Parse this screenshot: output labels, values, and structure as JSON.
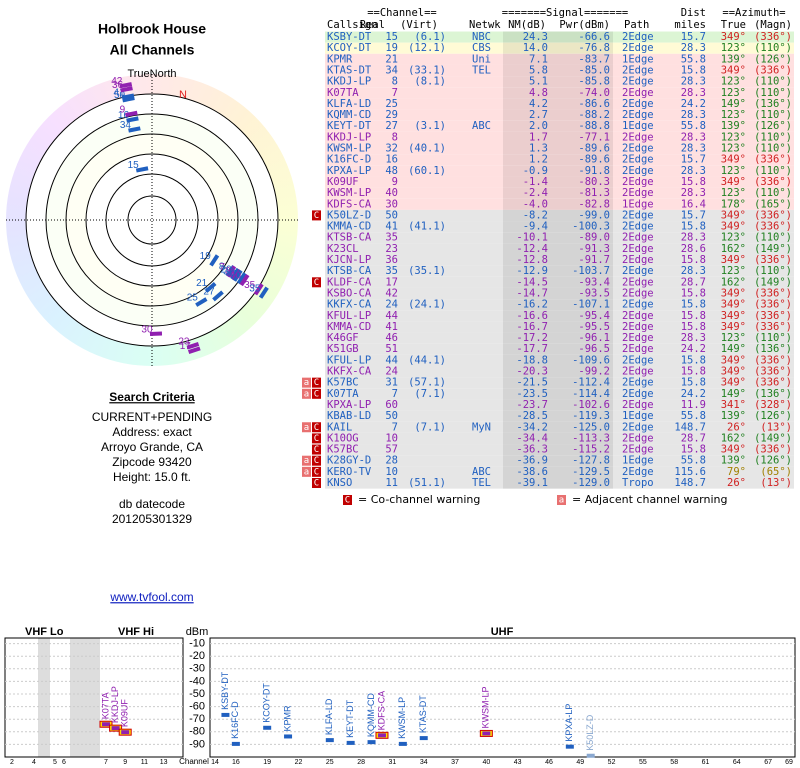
{
  "header": {
    "title": "Holbrook House",
    "subtitle": "All Channels",
    "north_label": "TrueNorth",
    "n_marker": "N"
  },
  "criteria": {
    "title": "Search Criteria",
    "lines": [
      "CURRENT+PENDING",
      "Address: exact",
      "Arroyo Grande, CA",
      "Zipcode 93420",
      "Height: 15.0 ft."
    ],
    "datecode_label": "db datecode",
    "datecode": "201205301329"
  },
  "link": "www.tvfool.com",
  "table": {
    "group_headers": [
      "==Channel==",
      "=======Signal=======",
      "Dist",
      "==Azimuth="
    ],
    "headers": [
      "Callsign",
      "Real",
      "(Virt)",
      "Netwk",
      "NM(dB)",
      "Pwr(dBm)",
      "Path",
      "miles",
      "True",
      "(Magn)"
    ],
    "rows": [
      {
        "callsign": "KSBY-DT",
        "real": "15",
        "virt": "(6.1)",
        "netwk": "NBC",
        "nm": "24.3",
        "pwr": "-66.6",
        "path": "2Edge",
        "dist": "15.7",
        "true": "349°",
        "magn": "(336°)",
        "color": "#2060c0"
      },
      {
        "callsign": "KCOY-DT",
        "real": "19",
        "virt": "(12.1)",
        "netwk": "CBS",
        "nm": "14.0",
        "pwr": "-76.8",
        "path": "2Edge",
        "dist": "28.3",
        "true": "123°",
        "magn": "(110°)",
        "color": "#2060c0"
      },
      {
        "callsign": "KPMR",
        "real": "21",
        "netwk": "Uni",
        "nm": "7.1",
        "pwr": "-83.7",
        "path": "1Edge",
        "dist": "55.8",
        "true": "139°",
        "magn": "(126°)",
        "color": "#2060c0"
      },
      {
        "callsign": "KTAS-DT",
        "real": "34",
        "virt": "(33.1)",
        "netwk": "TEL",
        "nm": "5.8",
        "pwr": "-85.0",
        "path": "2Edge",
        "dist": "15.8",
        "true": "349°",
        "magn": "(336°)",
        "color": "#2060c0"
      },
      {
        "callsign": "KKDJ-LP",
        "real": "8",
        "virt": "(8.1)",
        "nm": "5.1",
        "pwr": "-85.8",
        "path": "2Edge",
        "dist": "28.3",
        "true": "123°",
        "magn": "(110°)",
        "color": "#2060c0"
      },
      {
        "callsign": "K07TA",
        "real": "7",
        "nm": "4.8",
        "pwr": "-74.0",
        "path": "2Edge",
        "dist": "28.3",
        "true": "123°",
        "magn": "(110°)",
        "color": "#9020b0"
      },
      {
        "callsign": "KLFA-LD",
        "real": "25",
        "nm": "4.2",
        "pwr": "-86.6",
        "path": "2Edge",
        "dist": "24.2",
        "true": "149°",
        "magn": "(136°)",
        "color": "#2060c0"
      },
      {
        "callsign": "KQMM-CD",
        "real": "29",
        "nm": "2.7",
        "pwr": "-88.2",
        "path": "2Edge",
        "dist": "28.3",
        "true": "123°",
        "magn": "(110°)",
        "color": "#2060c0"
      },
      {
        "callsign": "KEYT-DT",
        "real": "27",
        "virt": "(3.1)",
        "netwk": "ABC",
        "nm": "2.0",
        "pwr": "-88.8",
        "path": "1Edge",
        "dist": "55.8",
        "true": "139°",
        "magn": "(126°)",
        "color": "#2060c0"
      },
      {
        "callsign": "KKDJ-LP",
        "real": "8",
        "nm": "1.7",
        "pwr": "-77.1",
        "path": "2Edge",
        "dist": "28.3",
        "true": "123°",
        "magn": "(110°)",
        "color": "#9020b0"
      },
      {
        "callsign": "KWSM-LP",
        "real": "32",
        "virt": "(40.1)",
        "nm": "1.3",
        "pwr": "-89.6",
        "path": "2Edge",
        "dist": "28.3",
        "true": "123°",
        "magn": "(110°)",
        "color": "#2060c0"
      },
      {
        "callsign": "K16FC-D",
        "real": "16",
        "nm": "1.2",
        "pwr": "-89.6",
        "path": "2Edge",
        "dist": "15.7",
        "true": "349°",
        "magn": "(336°)",
        "color": "#2060c0"
      },
      {
        "callsign": "KPXA-LP",
        "real": "48",
        "virt": "(60.1)",
        "nm": "-0.9",
        "pwr": "-91.8",
        "path": "2Edge",
        "dist": "28.3",
        "true": "123°",
        "magn": "(110°)",
        "color": "#2060c0"
      },
      {
        "callsign": "K09UF",
        "real": "9",
        "nm": "-1.4",
        "pwr": "-80.3",
        "path": "2Edge",
        "dist": "15.8",
        "true": "349°",
        "magn": "(336°)",
        "color": "#9020b0"
      },
      {
        "callsign": "KWSM-LP",
        "real": "40",
        "nm": "-2.4",
        "pwr": "-81.3",
        "path": "2Edge",
        "dist": "28.3",
        "true": "123°",
        "magn": "(110°)",
        "color": "#9020b0"
      },
      {
        "callsign": "KDFS-CA",
        "real": "30",
        "nm": "-4.0",
        "pwr": "-82.8",
        "path": "1Edge",
        "dist": "16.4",
        "true": "178°",
        "magn": "(165°)",
        "color": "#9020b0"
      },
      {
        "callsign": "K50LZ-D",
        "real": "50",
        "nm": "-8.2",
        "pwr": "-99.0",
        "path": "2Edge",
        "dist": "15.7",
        "true": "349°",
        "magn": "(336°)",
        "color": "#2060c0",
        "warnings": [
          "C"
        ]
      },
      {
        "callsign": "KMMA-CD",
        "real": "41",
        "virt": "(41.1)",
        "nm": "-9.4",
        "pwr": "-100.3",
        "path": "2Edge",
        "dist": "15.8",
        "true": "349°",
        "magn": "(336°)",
        "color": "#2060c0"
      },
      {
        "callsign": "KTSB-CA",
        "real": "35",
        "nm": "-10.1",
        "pwr": "-89.0",
        "path": "2Edge",
        "dist": "28.3",
        "true": "123°",
        "magn": "(110°)",
        "color": "#9020b0"
      },
      {
        "callsign": "K23CL",
        "real": "23",
        "nm": "-12.4",
        "pwr": "-91.3",
        "path": "2Edge",
        "dist": "28.6",
        "true": "162°",
        "magn": "(149°)",
        "color": "#9020b0"
      },
      {
        "callsign": "KJCN-LP",
        "real": "36",
        "nm": "-12.8",
        "pwr": "-91.7",
        "path": "2Edge",
        "dist": "15.8",
        "true": "349°",
        "magn": "(336°)",
        "color": "#9020b0"
      },
      {
        "callsign": "KTSB-CA",
        "real": "35",
        "virt": "(35.1)",
        "nm": "-12.9",
        "pwr": "-103.7",
        "path": "2Edge",
        "dist": "28.3",
        "true": "123°",
        "magn": "(110°)",
        "color": "#2060c0"
      },
      {
        "callsign": "KLDF-CA",
        "real": "17",
        "nm": "-14.5",
        "pwr": "-93.4",
        "path": "2Edge",
        "dist": "28.7",
        "true": "162°",
        "magn": "(149°)",
        "color": "#9020b0",
        "warnings": [
          "C"
        ]
      },
      {
        "callsign": "KSBO-CA",
        "real": "42",
        "nm": "-14.7",
        "pwr": "-93.5",
        "path": "2Edge",
        "dist": "15.8",
        "true": "349°",
        "magn": "(336°)",
        "color": "#9020b0"
      },
      {
        "callsign": "KKFX-CA",
        "real": "24",
        "virt": "(24.1)",
        "nm": "-16.2",
        "pwr": "-107.1",
        "path": "2Edge",
        "dist": "15.8",
        "true": "349°",
        "magn": "(336°)",
        "color": "#2060c0"
      },
      {
        "callsign": "KFUL-LP",
        "real": "44",
        "nm": "-16.6",
        "pwr": "-95.4",
        "path": "2Edge",
        "dist": "15.8",
        "true": "349°",
        "magn": "(336°)",
        "color": "#9020b0"
      },
      {
        "callsign": "KMMA-CD",
        "real": "41",
        "nm": "-16.7",
        "pwr": "-95.5",
        "path": "2Edge",
        "dist": "15.8",
        "true": "349°",
        "magn": "(336°)",
        "color": "#9020b0"
      },
      {
        "callsign": "K46GF",
        "real": "46",
        "nm": "-17.2",
        "pwr": "-96.1",
        "path": "2Edge",
        "dist": "28.3",
        "true": "123°",
        "magn": "(110°)",
        "color": "#9020b0"
      },
      {
        "callsign": "K51GB",
        "real": "51",
        "nm": "-17.7",
        "pwr": "-96.5",
        "path": "2Edge",
        "dist": "24.2",
        "true": "149°",
        "magn": "(136°)",
        "color": "#9020b0"
      },
      {
        "callsign": "KFUL-LP",
        "real": "44",
        "virt": "(44.1)",
        "nm": "-18.8",
        "pwr": "-109.6",
        "path": "2Edge",
        "dist": "15.8",
        "true": "349°",
        "magn": "(336°)",
        "color": "#2060c0"
      },
      {
        "callsign": "KKFX-CA",
        "real": "24",
        "nm": "-20.3",
        "pwr": "-99.2",
        "path": "2Edge",
        "dist": "15.8",
        "true": "349°",
        "magn": "(336°)",
        "color": "#9020b0"
      },
      {
        "callsign": "K57BC",
        "real": "31",
        "virt": "(57.1)",
        "nm": "-21.5",
        "pwr": "-112.4",
        "path": "2Edge",
        "dist": "15.8",
        "true": "349°",
        "magn": "(336°)",
        "color": "#2060c0",
        "warnings": [
          "a",
          "C"
        ]
      },
      {
        "callsign": "K07TA",
        "real": "7",
        "virt": "(7.1)",
        "nm": "-23.5",
        "pwr": "-114.4",
        "path": "2Edge",
        "dist": "24.2",
        "true": "149°",
        "magn": "(136°)",
        "color": "#2060c0",
        "warnings": [
          "a",
          "C"
        ]
      },
      {
        "callsign": "KPXA-LP",
        "real": "60",
        "nm": "-23.7",
        "pwr": "-102.6",
        "path": "2Edge",
        "dist": "11.9",
        "true": "341°",
        "magn": "(328°)",
        "color": "#9020b0"
      },
      {
        "callsign": "KBAB-LD",
        "real": "50",
        "nm": "-28.5",
        "pwr": "-119.3",
        "path": "1Edge",
        "dist": "55.8",
        "true": "139°",
        "magn": "(126°)",
        "color": "#2060c0"
      },
      {
        "callsign": "KAIL",
        "real": "7",
        "virt": "(7.1)",
        "netwk": "MyN",
        "nm": "-34.2",
        "pwr": "-125.0",
        "path": "2Edge",
        "dist": "148.7",
        "true": "26°",
        "magn": "(13°)",
        "color": "#2060c0",
        "warnings": [
          "a",
          "C"
        ]
      },
      {
        "callsign": "K10OG",
        "real": "10",
        "nm": "-34.4",
        "pwr": "-113.3",
        "path": "2Edge",
        "dist": "28.7",
        "true": "162°",
        "magn": "(149°)",
        "color": "#9020b0",
        "warnings": [
          "C"
        ]
      },
      {
        "callsign": "K57BC",
        "real": "57",
        "nm": "-36.3",
        "pwr": "-115.2",
        "path": "2Edge",
        "dist": "15.8",
        "true": "349°",
        "magn": "(336°)",
        "color": "#9020b0",
        "warnings": [
          "C"
        ]
      },
      {
        "callsign": "K28GY-D",
        "real": "28",
        "nm": "-36.9",
        "pwr": "-127.8",
        "path": "1Edge",
        "dist": "55.8",
        "true": "139°",
        "magn": "(126°)",
        "color": "#2060c0",
        "warnings": [
          "a",
          "C"
        ]
      },
      {
        "callsign": "KERO-TV",
        "real": "10",
        "netwk": "ABC",
        "nm": "-38.6",
        "pwr": "-129.5",
        "path": "2Edge",
        "dist": "115.6",
        "true": "79°",
        "magn": "(65°)",
        "color": "#2060c0",
        "warnings": [
          "a",
          "C"
        ]
      },
      {
        "callsign": "KNSO",
        "real": "11",
        "virt": "(51.1)",
        "netwk": "TEL",
        "nm": "-39.1",
        "pwr": "-129.0",
        "path": "Tropo",
        "dist": "148.7",
        "true": "26°",
        "magn": "(13°)",
        "color": "#2060c0",
        "warnings": [
          "C"
        ]
      }
    ]
  },
  "legend": [
    {
      "icon": "C",
      "text": "= Co-channel warning"
    },
    {
      "icon": "a",
      "text": "= Adjacent channel warning"
    }
  ],
  "spectrum": {
    "vhf_lo_label": "VHF Lo",
    "vhf_hi_label": "VHF Hi",
    "uhf_label": "UHF",
    "y_label": "dBm",
    "x_label": "Channel",
    "ylim": [
      -100,
      0
    ],
    "yticks": [
      -10,
      -20,
      -30,
      -40,
      -50,
      -60,
      -70,
      -80,
      -90
    ],
    "vhf_xticks": [
      2,
      4,
      5,
      6,
      7,
      9,
      11,
      13
    ],
    "uhf_xlim": [
      14,
      69
    ],
    "uhf_xticks": [
      14,
      16,
      19,
      22,
      25,
      28,
      31,
      34,
      37,
      40,
      43,
      46,
      49,
      52,
      55,
      58,
      61,
      64,
      67,
      69
    ],
    "stations": [
      {
        "label": "K07TA",
        "channel": 7,
        "pwr": -74.0,
        "color": "#9020b0"
      },
      {
        "label": "KKDJ-LP",
        "channel": 8,
        "pwr": -77.1,
        "color": "#9020b0"
      },
      {
        "label": "K09UF",
        "channel": 9,
        "pwr": -80.3,
        "color": "#9020b0"
      },
      {
        "label": "KSBY-DT",
        "channel": 15,
        "pwr": -66.6,
        "color": "#2060c0"
      },
      {
        "label": "K16FC-D",
        "channel": 16,
        "pwr": -89.6,
        "color": "#2060c0"
      },
      {
        "label": "KCOY-DT",
        "channel": 19,
        "pwr": -76.8,
        "color": "#2060c0"
      },
      {
        "label": "KPMR",
        "channel": 21,
        "pwr": -83.7,
        "color": "#2060c0"
      },
      {
        "label": "KLFA-LD",
        "channel": 25,
        "pwr": -86.6,
        "color": "#2060c0"
      },
      {
        "label": "KEYT-DT",
        "channel": 27,
        "pwr": -88.8,
        "color": "#2060c0"
      },
      {
        "label": "KQMM-CD",
        "channel": 29,
        "pwr": -88.2,
        "color": "#2060c0"
      },
      {
        "label": "KDFS-CA",
        "channel": 30,
        "pwr": -82.8,
        "color": "#9020b0"
      },
      {
        "label": "KWSM-LP",
        "channel": 32,
        "pwr": -89.6,
        "color": "#2060c0"
      },
      {
        "label": "KTAS-DT",
        "channel": 34,
        "pwr": -85.0,
        "color": "#2060c0"
      },
      {
        "label": "KWSM-LP",
        "channel": 40,
        "pwr": -81.3,
        "color": "#9020b0"
      },
      {
        "label": "KPXA-LP",
        "channel": 48,
        "pwr": -91.8,
        "color": "#2060c0"
      },
      {
        "label": "K50LZ-D",
        "channel": 50,
        "pwr": -99.0,
        "color": "#8aa8d0"
      }
    ]
  }
}
